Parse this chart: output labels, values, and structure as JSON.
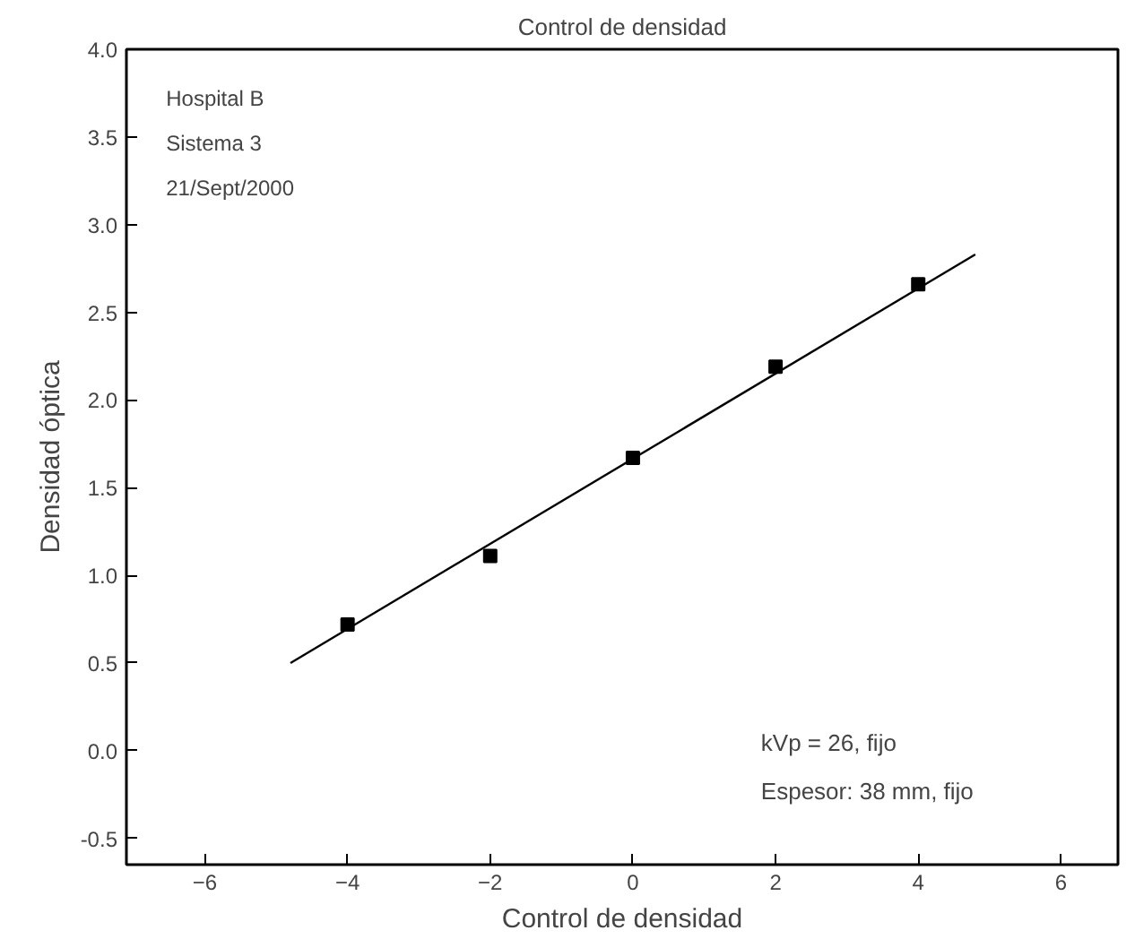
{
  "chart_data": {
    "type": "scatter",
    "title": "Control de densidad",
    "xlabel": "Control de densidad",
    "ylabel": "Densidad óptica",
    "series": [
      {
        "color": "#000000",
        "x": [
          -4,
          -2,
          0,
          2,
          4
        ],
        "values": [
          0.72,
          1.11,
          1.67,
          2.19,
          2.66
        ],
        "marker": "square"
      },
      {
        "type": "line",
        "color": "#000000",
        "x": [
          -4.8,
          4.8
        ],
        "values": [
          0.5,
          2.83
        ],
        "line_style": "solid"
      }
    ],
    "xlim": [
      -7.1,
      6.8
    ],
    "ylim": [
      -0.65,
      4.0
    ],
    "xticks": [
      -6,
      -4,
      -2,
      0,
      2,
      4,
      6
    ],
    "yticks": [
      {
        "value": -0.5,
        "label": "-0.5"
      },
      {
        "value": 0,
        "label": "0.0"
      },
      {
        "value": 0.5,
        "label": "0.5"
      },
      {
        "value": 1,
        "label": "1.0"
      },
      {
        "value": 1.5,
        "label": "1.5"
      },
      {
        "value": 2,
        "label": "2.0"
      },
      {
        "value": 2.5,
        "label": "2.5"
      },
      {
        "value": 3,
        "label": "3.0"
      },
      {
        "value": 3.5,
        "label": "3.5"
      },
      {
        "value": 4,
        "label": "4.0"
      }
    ],
    "annotations": [
      "Hospital B",
      "Sistema 3",
      "21/Sept/2000",
      "kVp = 26, fijo",
      "Espesor: 38 mm, fijo"
    ],
    "grid": false
  }
}
